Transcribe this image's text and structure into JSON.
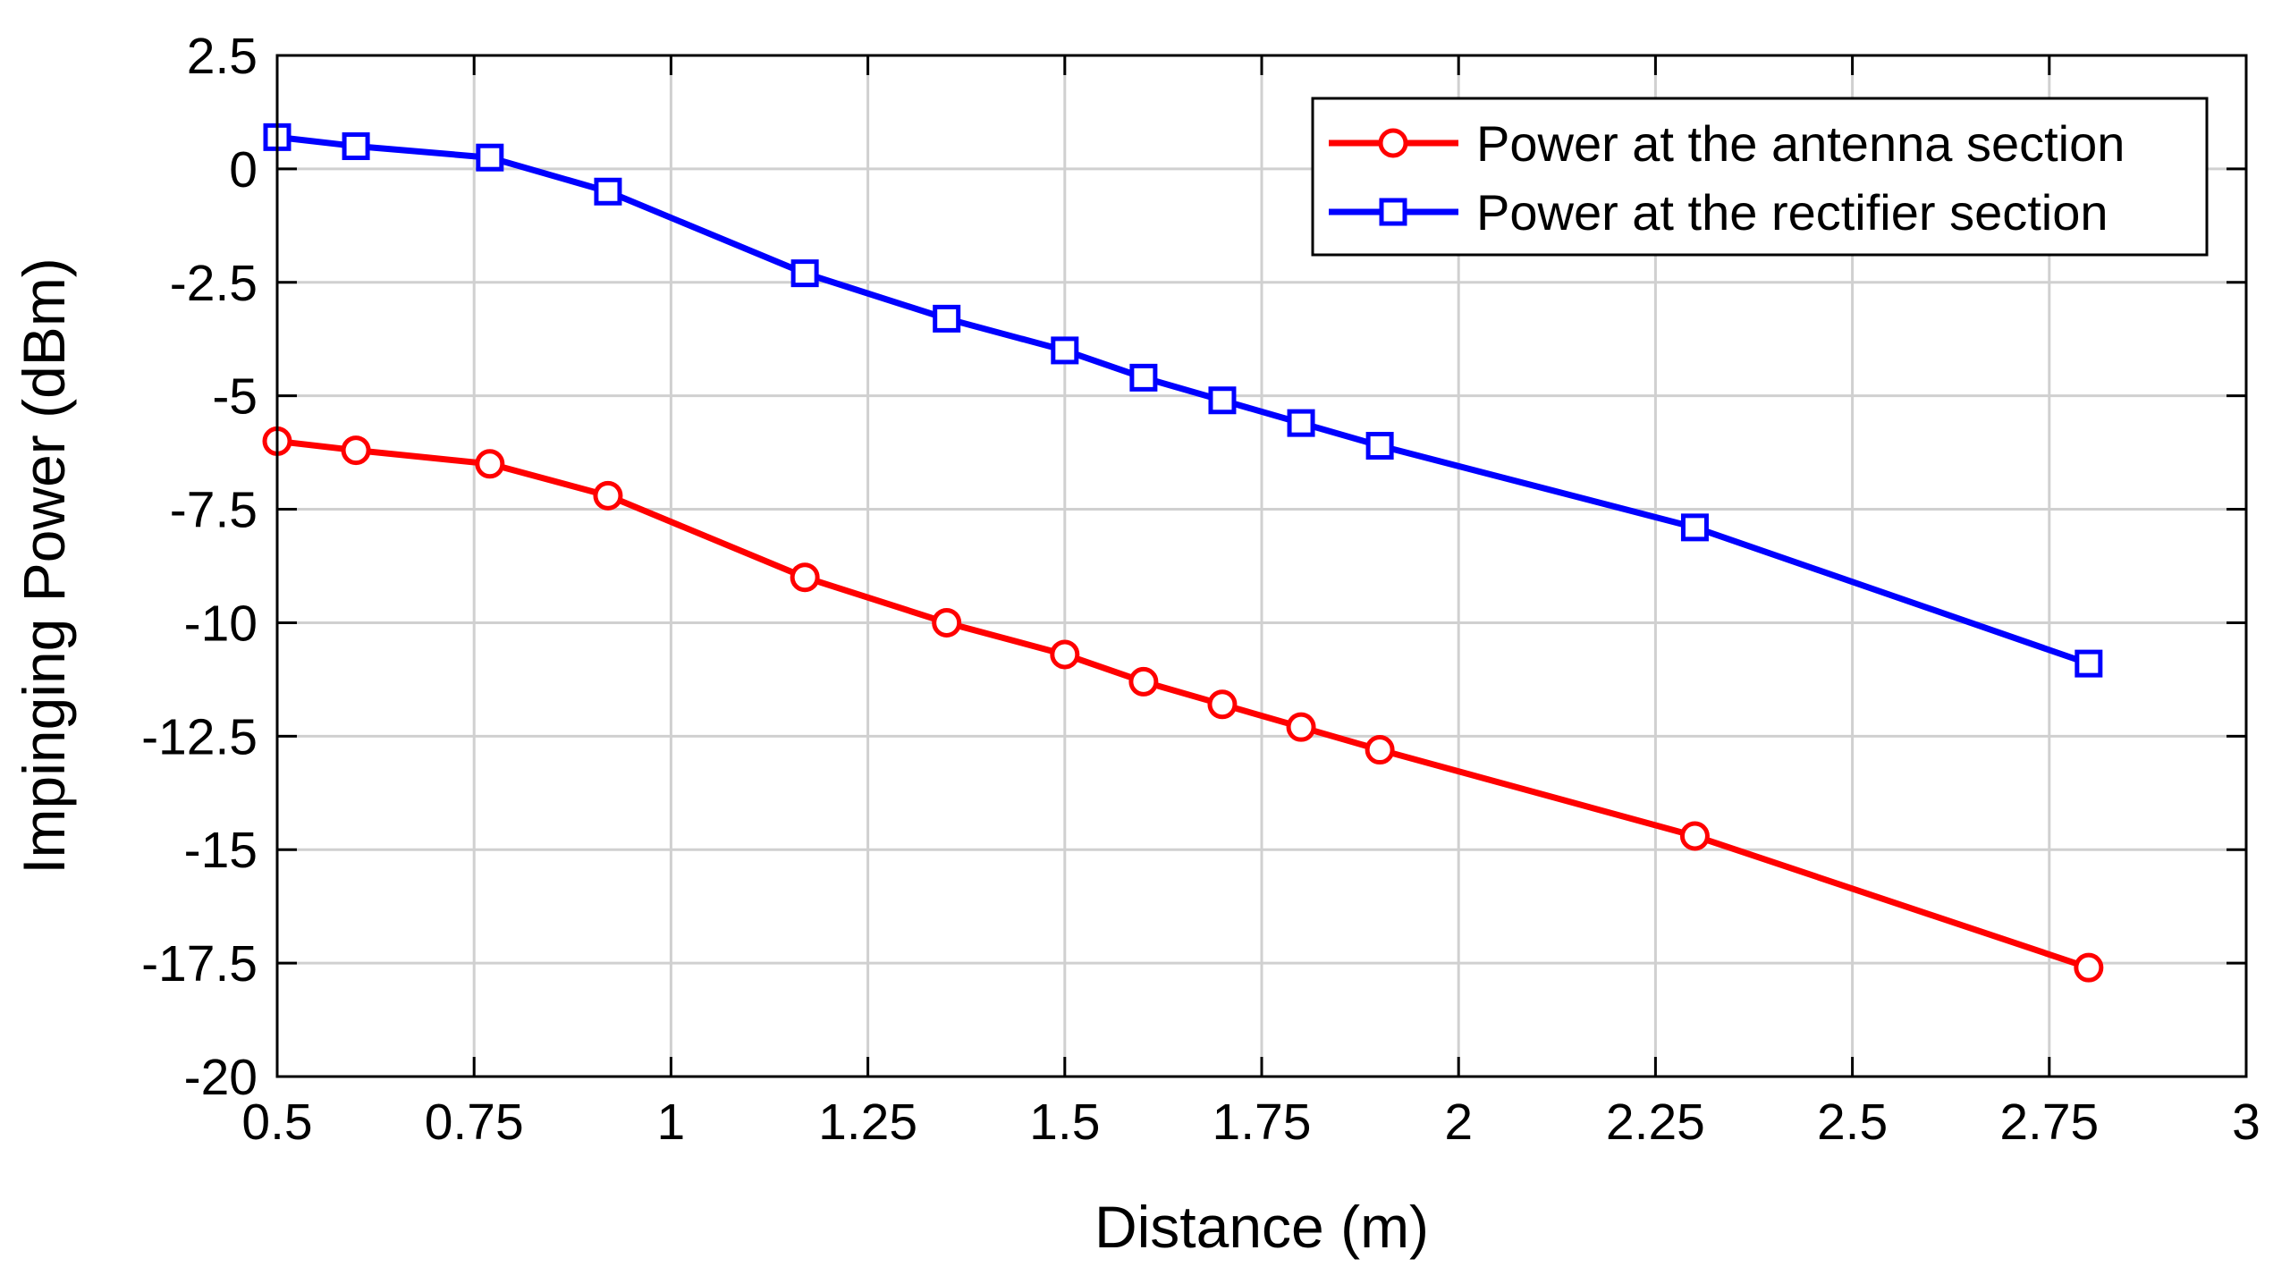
{
  "chart_data": {
    "type": "line",
    "title": "",
    "xlabel": "Distance (m)",
    "ylabel": "Impinging Power (dBm)",
    "xlim": [
      0.5,
      3
    ],
    "ylim": [
      -20,
      2.5
    ],
    "xticks": [
      0.5,
      0.75,
      1,
      1.25,
      1.5,
      1.75,
      2,
      2.25,
      2.5,
      2.75,
      3
    ],
    "xtick_labels": [
      "0.5",
      "0.75",
      "1",
      "1.25",
      "1.5",
      "1.75",
      "2",
      "2.25",
      "2.5",
      "2.75",
      "3"
    ],
    "yticks": [
      2.5,
      0,
      -2.5,
      -5,
      -7.5,
      -10,
      -12.5,
      -15,
      -17.5,
      -20
    ],
    "ytick_labels": [
      "2.5",
      "0",
      "-2.5",
      "-5",
      "-7.5",
      "-10",
      "-12.5",
      "-15",
      "-17.5",
      "-20"
    ],
    "grid": true,
    "legend_position": "top-right",
    "series": [
      {
        "name": "Power at the antenna section",
        "color": "#ff0000",
        "marker": "circle",
        "x": [
          0.5,
          0.6,
          0.77,
          0.92,
          1.17,
          1.35,
          1.5,
          1.6,
          1.7,
          1.8,
          1.9,
          2.3,
          2.8
        ],
        "y": [
          -6.0,
          -6.2,
          -6.5,
          -7.2,
          -9.0,
          -10.0,
          -10.7,
          -11.3,
          -11.8,
          -12.3,
          -12.8,
          -14.7,
          -17.6
        ]
      },
      {
        "name": "Power at the rectifier section",
        "color": "#0000ff",
        "marker": "square",
        "x": [
          0.5,
          0.6,
          0.77,
          0.92,
          1.17,
          1.35,
          1.5,
          1.6,
          1.7,
          1.8,
          1.9,
          2.3,
          2.8
        ],
        "y": [
          0.7,
          0.5,
          0.25,
          -0.5,
          -2.3,
          -3.3,
          -4.0,
          -4.6,
          -5.1,
          -5.6,
          -6.1,
          -7.9,
          -10.9
        ]
      }
    ]
  }
}
